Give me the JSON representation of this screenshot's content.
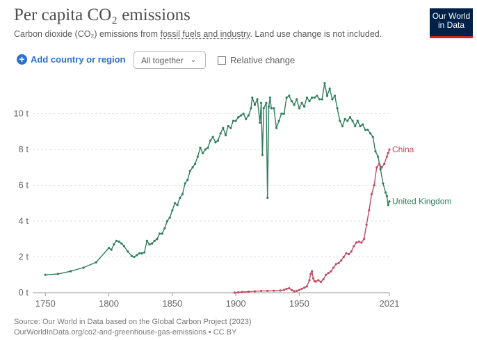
{
  "header": {
    "title": "Per capita CO₂ emissions",
    "subtitle_prefix": "Carbon dioxide (CO₂) emissions from ",
    "subtitle_link": "fossil fuels and industry",
    "subtitle_suffix": ". Land use change is not included.",
    "logo_line1": "Our World",
    "logo_line2": "in Data"
  },
  "controls": {
    "add_label": "Add country or region",
    "select_value": "All together",
    "relative_label": "Relative change"
  },
  "footer": {
    "source": "Source: Our World in Data based on the Global Carbon Project (2023)",
    "url": "OurWorldInData.org/co2-and-greenhouse-gas-emissions • CC BY"
  },
  "chart_data": {
    "type": "line",
    "xlim": [
      1740,
      2021
    ],
    "ylim": [
      0,
      12
    ],
    "x_ticks": [
      1750,
      1800,
      1850,
      1900,
      1950,
      2021
    ],
    "y_ticks": [
      0,
      2,
      4,
      6,
      8,
      10
    ],
    "y_tick_labels": [
      "0 t",
      "2 t",
      "4 t",
      "6 t",
      "8 t",
      "10 t"
    ],
    "colors": {
      "uk": "#2e7d5b",
      "china": "#c34a5e",
      "grid": "#dddddd"
    },
    "series": [
      {
        "name": "United Kingdom",
        "color": "#2e7d5b",
        "x": [
          1750,
          1760,
          1770,
          1780,
          1790,
          1800,
          1802,
          1804,
          1806,
          1808,
          1810,
          1812,
          1815,
          1818,
          1820,
          1822,
          1824,
          1826,
          1828,
          1830,
          1832,
          1834,
          1836,
          1838,
          1840,
          1842,
          1844,
          1846,
          1848,
          1850,
          1852,
          1854,
          1856,
          1858,
          1860,
          1862,
          1864,
          1866,
          1868,
          1870,
          1872,
          1874,
          1876,
          1878,
          1880,
          1882,
          1884,
          1886,
          1888,
          1890,
          1892,
          1894,
          1896,
          1898,
          1900,
          1902,
          1904,
          1906,
          1908,
          1910,
          1912,
          1913,
          1915,
          1917,
          1919,
          1920,
          1921,
          1922,
          1924,
          1925,
          1926,
          1927,
          1928,
          1930,
          1932,
          1934,
          1936,
          1938,
          1940,
          1942,
          1944,
          1946,
          1948,
          1950,
          1952,
          1954,
          1956,
          1958,
          1960,
          1962,
          1964,
          1966,
          1968,
          1970,
          1972,
          1974,
          1976,
          1978,
          1980,
          1982,
          1984,
          1986,
          1988,
          1990,
          1992,
          1994,
          1996,
          1998,
          2000,
          2002,
          2004,
          2006,
          2008,
          2010,
          2012,
          2014,
          2016,
          2018,
          2019,
          2020,
          2021
        ],
        "values": [
          1.0,
          1.05,
          1.2,
          1.4,
          1.7,
          2.5,
          2.4,
          2.7,
          2.9,
          2.85,
          2.75,
          2.6,
          2.3,
          2.05,
          2.0,
          2.1,
          2.2,
          2.2,
          2.25,
          2.9,
          2.7,
          2.75,
          2.9,
          3.0,
          3.3,
          3.3,
          3.6,
          4.0,
          4.2,
          4.6,
          5.0,
          4.9,
          5.3,
          5.5,
          6.1,
          6.3,
          6.8,
          7.0,
          7.2,
          7.6,
          8.1,
          7.8,
          8.0,
          8.1,
          8.5,
          8.7,
          8.4,
          8.5,
          8.9,
          9.2,
          8.8,
          9.3,
          9.2,
          9.6,
          9.6,
          9.8,
          9.9,
          10.0,
          9.7,
          9.9,
          10.3,
          10.9,
          10.5,
          10.8,
          9.5,
          10.6,
          7.7,
          10.3,
          10.6,
          5.3,
          10.4,
          10.9,
          10.3,
          10.3,
          9.2,
          9.6,
          10.0,
          10.0,
          10.9,
          11.0,
          10.7,
          10.5,
          10.8,
          10.3,
          10.6,
          10.4,
          10.9,
          10.7,
          10.9,
          10.9,
          11.0,
          10.8,
          10.8,
          11.7,
          11.0,
          11.4,
          10.8,
          11.0,
          10.3,
          9.6,
          9.3,
          9.7,
          9.6,
          9.8,
          9.6,
          9.3,
          9.6,
          9.3,
          9.4,
          9.1,
          9.1,
          8.9,
          8.7,
          7.9,
          7.6,
          6.9,
          6.1,
          5.6,
          5.4,
          4.9,
          5.1
        ]
      },
      {
        "name": "China",
        "color": "#c34a5e",
        "x": [
          1899,
          1902,
          1905,
          1910,
          1915,
          1920,
          1925,
          1930,
          1935,
          1938,
          1940,
          1942,
          1944,
          1946,
          1948,
          1950,
          1952,
          1954,
          1956,
          1958,
          1959,
          1960,
          1961,
          1962,
          1963,
          1965,
          1967,
          1969,
          1971,
          1973,
          1975,
          1977,
          1979,
          1981,
          1983,
          1985,
          1987,
          1989,
          1991,
          1993,
          1995,
          1997,
          1999,
          2001,
          2003,
          2005,
          2007,
          2009,
          2011,
          2013,
          2015,
          2017,
          2019,
          2020,
          2021
        ],
        "values": [
          0.0,
          0.02,
          0.04,
          0.06,
          0.08,
          0.1,
          0.1,
          0.11,
          0.12,
          0.15,
          0.22,
          0.25,
          0.15,
          0.08,
          0.1,
          0.15,
          0.22,
          0.28,
          0.35,
          0.7,
          1.05,
          1.2,
          0.8,
          0.65,
          0.62,
          0.7,
          0.6,
          0.75,
          1.0,
          1.1,
          1.2,
          1.4,
          1.6,
          1.65,
          1.8,
          2.0,
          2.2,
          2.15,
          2.3,
          2.6,
          2.8,
          2.85,
          2.8,
          3.0,
          3.8,
          4.6,
          5.5,
          6.0,
          7.0,
          7.2,
          7.0,
          7.2,
          7.6,
          7.8,
          8.0
        ]
      }
    ]
  }
}
